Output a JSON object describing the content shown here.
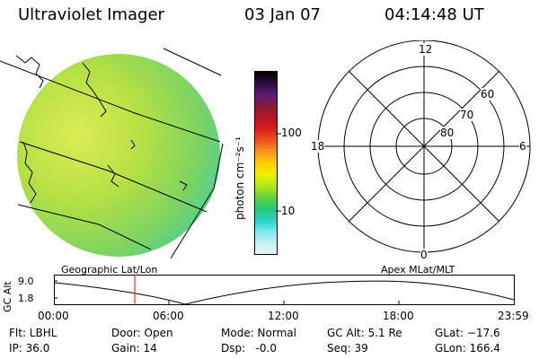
{
  "header": {
    "title": "Ultraviolet Imager",
    "date": "03 Jan 07",
    "time": "04:14:48 UT"
  },
  "colorbar": {
    "unit_label": "photon cm⁻²s⁻¹",
    "tick_labels": [
      "100",
      "10"
    ],
    "colors": [
      "#000000",
      "#2b0b3f",
      "#5b1c78",
      "#8a1a3a",
      "#b8142a",
      "#d91e1e",
      "#f0501e",
      "#f7941d",
      "#ffcc00",
      "#f0f000",
      "#b4e61e",
      "#64d23c",
      "#28c878",
      "#28d2c8",
      "#78e6f0",
      "#c8f0f0",
      "#e6f5f5"
    ]
  },
  "polar_plot": {
    "mlt_labels": {
      "top": "12",
      "left": "18",
      "right": "6",
      "bottom": "0"
    },
    "lat_labels": [
      "60",
      "70",
      "80"
    ]
  },
  "orbit_panel": {
    "left_caption": "Geographic Lat/Lon",
    "right_caption": "Apex MLat/MLT",
    "ylabel": "GC Alt",
    "ytick_labels": [
      "9.0",
      "1.8"
    ],
    "xtick_labels": [
      "00:00",
      "06:00",
      "12:00",
      "18:00",
      "23:59"
    ],
    "cursor_color": "#ff0000"
  },
  "status": {
    "flt": "Flt: LBHL",
    "ip": "IP: 36.0",
    "door": "Door: Open",
    "gain": "Gain: 14",
    "mode": "Mode: Normal",
    "dsp": "Dsp:   -0.0",
    "gc_alt": "GC Alt: 5.1 Re",
    "seq": "Seq: 39",
    "glat": "GLat: −17.6",
    "glon": "GLon: 166.4"
  }
}
